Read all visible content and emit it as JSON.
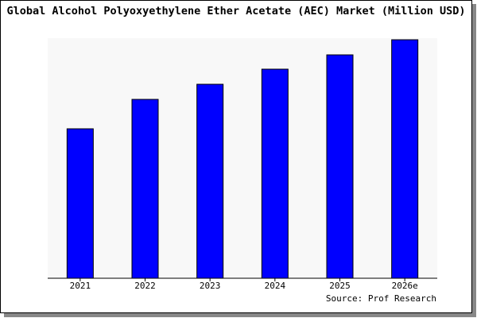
{
  "chart_data": {
    "type": "bar",
    "title": "Global Alcohol Polyoxyethylene Ether Acetate (AEC) Market (Million USD)",
    "categories": [
      "2021",
      "2022",
      "2023",
      "2024",
      "2025",
      "2026e"
    ],
    "values": [
      188,
      225,
      244,
      263,
      281,
      300
    ],
    "color": "#0000ff",
    "source": "Source: Prof Research"
  }
}
